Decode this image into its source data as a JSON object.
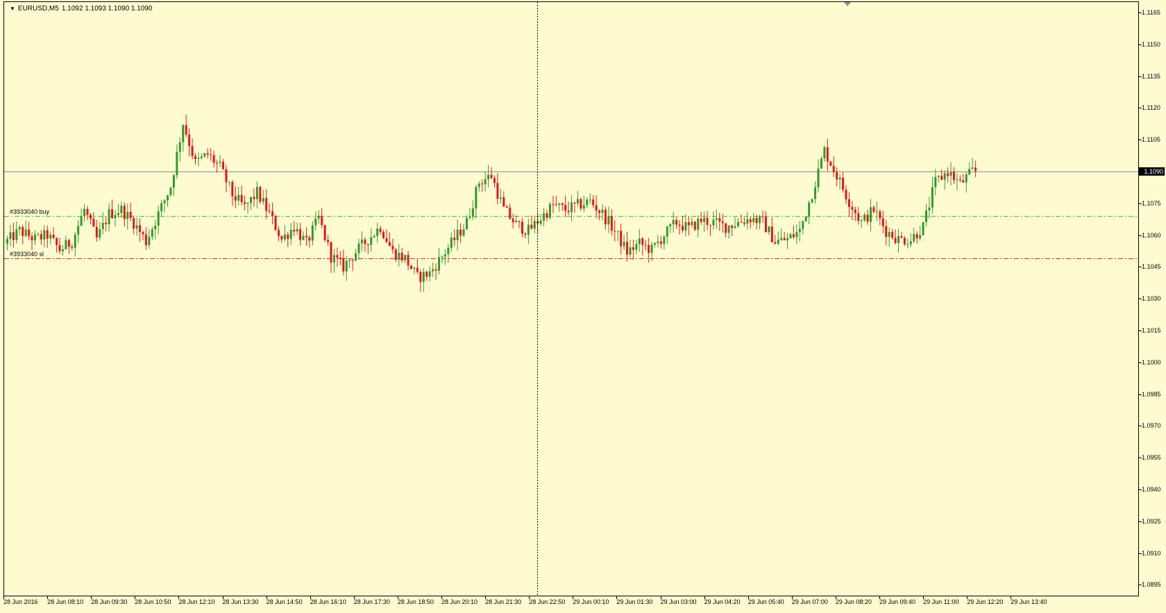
{
  "header": {
    "menu_icon": "triangle-down-icon",
    "symbol_text": "EURUSD,M5",
    "ohlc_text": "1.1092 1.1093 1.1090 1.1090"
  },
  "price_axis": {
    "ticks": [
      "1.1165",
      "1.1150",
      "1.1135",
      "1.1120",
      "1.1105",
      "1.1075",
      "1.1060",
      "1.1045",
      "1.1030",
      "1.1015",
      "1.1000",
      "1.0985",
      "1.0970",
      "1.0955",
      "1.0940",
      "1.0925",
      "1.0910",
      "1.0895"
    ],
    "current_price": "1.1090"
  },
  "time_axis": {
    "labels": [
      "28 Jun 2016",
      "28 Jun 08:10",
      "28 Jun 09:30",
      "28 Jun 10:50",
      "28 Jun 12:10",
      "28 Jun 13:30",
      "28 Jun 14:50",
      "28 Jun 16:10",
      "28 Jun 17:30",
      "28 Jun 18:50",
      "28 Jun 20:10",
      "28 Jun 21:30",
      "28 Jun 22:50",
      "29 Jun 00:10",
      "29 Jun 01:30",
      "29 Jun 03:00",
      "29 Jun 04:20",
      "29 Jun 05:40",
      "29 Jun 07:00",
      "29 Jun 08:20",
      "29 Jun 09:40",
      "29 Jun 11:00",
      "29 Jun 12:20",
      "29 Jun 13:40"
    ]
  },
  "orders": {
    "buy_label": "#3933040 buy",
    "buy_price": 1.1069,
    "sl_label": "#3933040 sl",
    "sl_price": 1.1049
  },
  "colors": {
    "background": "#fffbd0",
    "bull": "#2e9a2e",
    "bear": "#e8141c",
    "buy_line": "#3cb03c",
    "sl_line": "#e8141c",
    "bid_line": "#8a8a9a"
  },
  "chart_data": {
    "type": "candlestick",
    "symbol": "EURUSD",
    "timeframe": "M5",
    "y_range": [
      1.109,
      1.1169
    ],
    "y_ticks_step": 0.0015,
    "bid": 1.109,
    "close_path": [
      [
        0,
        1.1056
      ],
      [
        5,
        1.1062
      ],
      [
        10,
        1.1058
      ],
      [
        14,
        1.106
      ],
      [
        18,
        1.1053
      ],
      [
        22,
        1.1057
      ],
      [
        26,
        1.1072
      ],
      [
        30,
        1.1058
      ],
      [
        34,
        1.107
      ],
      [
        38,
        1.1072
      ],
      [
        42,
        1.1066
      ],
      [
        46,
        1.1057
      ],
      [
        50,
        1.107
      ],
      [
        54,
        1.1083
      ],
      [
        58,
        1.1113
      ],
      [
        62,
        1.1094
      ],
      [
        66,
        1.1098
      ],
      [
        70,
        1.1092
      ],
      [
        74,
        1.1079
      ],
      [
        78,
        1.1073
      ],
      [
        82,
        1.108
      ],
      [
        86,
        1.107
      ],
      [
        90,
        1.1058
      ],
      [
        94,
        1.1064
      ],
      [
        98,
        1.1056
      ],
      [
        102,
        1.1068
      ],
      [
        106,
        1.105
      ],
      [
        110,
        1.1045
      ],
      [
        114,
        1.1052
      ],
      [
        118,
        1.1058
      ],
      [
        122,
        1.1064
      ],
      [
        126,
        1.1052
      ],
      [
        130,
        1.1049
      ],
      [
        134,
        1.104
      ],
      [
        138,
        1.1042
      ],
      [
        142,
        1.105
      ],
      [
        146,
        1.1058
      ],
      [
        150,
        1.1066
      ],
      [
        154,
        1.1085
      ],
      [
        158,
        1.1088
      ],
      [
        162,
        1.1072
      ],
      [
        166,
        1.1065
      ],
      [
        170,
        1.1062
      ],
      [
        174,
        1.1068
      ],
      [
        178,
        1.1074
      ],
      [
        182,
        1.1072
      ],
      [
        186,
        1.1074
      ],
      [
        190,
        1.1076
      ],
      [
        194,
        1.107
      ],
      [
        198,
        1.1062
      ],
      [
        202,
        1.1052
      ],
      [
        206,
        1.1056
      ],
      [
        210,
        1.1053
      ],
      [
        214,
        1.106
      ],
      [
        218,
        1.1066
      ],
      [
        222,
        1.1063
      ],
      [
        226,
        1.1067
      ],
      [
        230,
        1.1066
      ],
      [
        234,
        1.1064
      ],
      [
        238,
        1.1066
      ],
      [
        242,
        1.1068
      ],
      [
        246,
        1.1066
      ],
      [
        250,
        1.1057
      ],
      [
        254,
        1.1058
      ],
      [
        258,
        1.1062
      ],
      [
        262,
        1.108
      ],
      [
        266,
        1.11
      ],
      [
        270,
        1.1088
      ],
      [
        274,
        1.1076
      ],
      [
        278,
        1.1066
      ],
      [
        282,
        1.1072
      ],
      [
        286,
        1.1062
      ],
      [
        290,
        1.1058
      ],
      [
        294,
        1.1058
      ],
      [
        298,
        1.1064
      ],
      [
        302,
        1.1085
      ],
      [
        306,
        1.109
      ],
      [
        310,
        1.1084
      ],
      [
        314,
        1.109
      ]
    ],
    "candles_drawn": 315
  },
  "crosshair": {
    "visible": true
  }
}
